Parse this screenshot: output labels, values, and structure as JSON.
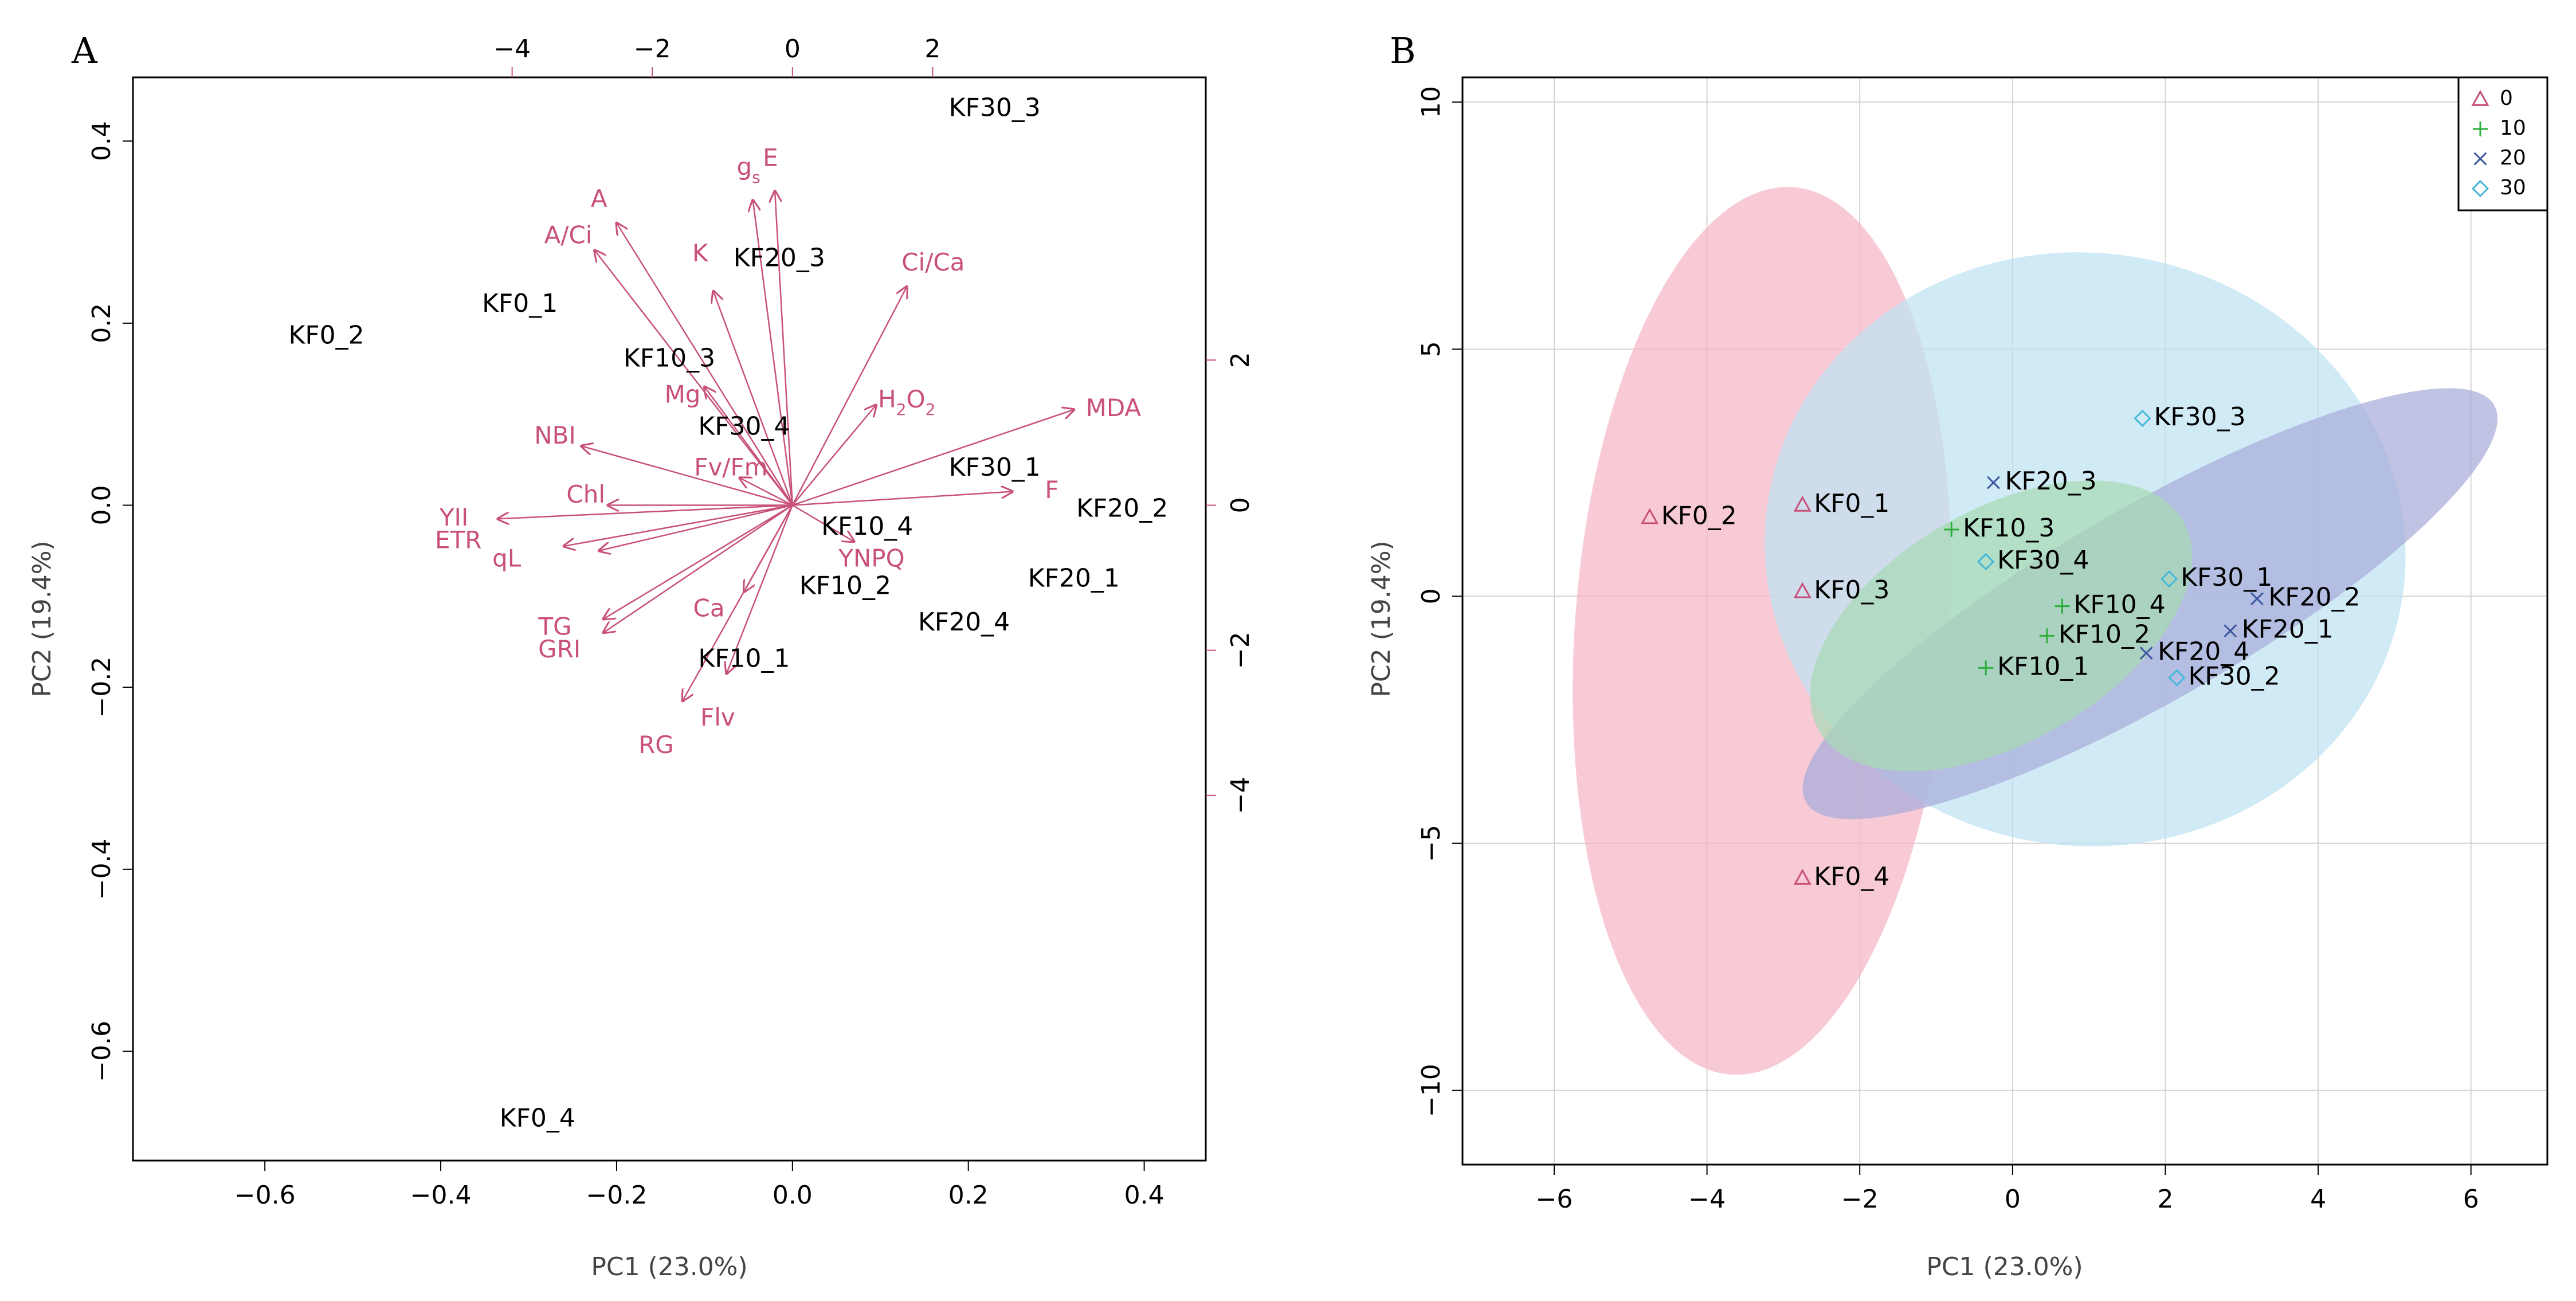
{
  "chart_data": [
    {
      "panel": "A",
      "type": "scatter",
      "subtype": "biplot",
      "xlabel": "PC1 (23.0%)",
      "ylabel": "PC2 (19.4%)",
      "xlim": [
        -0.75,
        0.47
      ],
      "ylim": [
        -0.72,
        0.47
      ],
      "xticks": [
        -0.6,
        -0.4,
        -0.2,
        0.0,
        0.2,
        0.4
      ],
      "yticks": [
        -0.6,
        -0.4,
        -0.2,
        0.0,
        0.2,
        0.4
      ],
      "xtick_labels": [
        "−0.6",
        "−0.4",
        "−0.2",
        "0.0",
        "0.2",
        "0.4"
      ],
      "ytick_labels": [
        "−0.6",
        "−0.4",
        "−0.2",
        "0.0",
        "0.2",
        "0.4"
      ],
      "top_ticks": [
        -4,
        -2,
        0,
        2
      ],
      "top_tick_labels": [
        "−4",
        "−2",
        "0",
        "2"
      ],
      "right_ticks": [
        -4,
        -2,
        0,
        2
      ],
      "right_tick_labels": [
        "−4",
        "−2",
        "0",
        "2"
      ],
      "secondary_scale": 0.0797,
      "observations": [
        {
          "label": "KF0_1",
          "x": -0.31,
          "y": 0.22
        },
        {
          "label": "KF0_2",
          "x": -0.53,
          "y": 0.185
        },
        {
          "label": "KF0_4",
          "x": -0.29,
          "y": -0.675
        },
        {
          "label": "KF10_1",
          "x": -0.055,
          "y": -0.17
        },
        {
          "label": "KF10_2",
          "x": 0.06,
          "y": -0.09
        },
        {
          "label": "KF10_3",
          "x": -0.14,
          "y": 0.16
        },
        {
          "label": "KF10_4",
          "x": 0.085,
          "y": -0.025
        },
        {
          "label": "KF20_1",
          "x": 0.32,
          "y": -0.082
        },
        {
          "label": "KF20_2",
          "x": 0.375,
          "y": -0.005
        },
        {
          "label": "KF20_3",
          "x": -0.015,
          "y": 0.27
        },
        {
          "label": "KF20_4",
          "x": 0.195,
          "y": -0.13
        },
        {
          "label": "KF30_1",
          "x": 0.23,
          "y": 0.04
        },
        {
          "label": "KF30_3",
          "x": 0.23,
          "y": 0.435
        },
        {
          "label": "KF30_4",
          "x": -0.055,
          "y": 0.085
        }
      ],
      "variables": [
        {
          "label": "A",
          "x": -0.2,
          "y": 0.31,
          "lx": -0.22,
          "ly": 0.335
        },
        {
          "label": "A/Ci",
          "x": -0.225,
          "y": 0.28,
          "lx": -0.255,
          "ly": 0.295
        },
        {
          "label": "K",
          "x": -0.09,
          "y": 0.235,
          "lx": -0.105,
          "ly": 0.275
        },
        {
          "label": "E",
          "x": -0.02,
          "y": 0.345,
          "lx": -0.025,
          "ly": 0.38
        },
        {
          "label": "gs",
          "x": -0.045,
          "y": 0.335,
          "lx": -0.05,
          "ly": 0.37,
          "display": "g_s"
        },
        {
          "label": "Ci/Ca",
          "x": 0.13,
          "y": 0.24,
          "lx": 0.16,
          "ly": 0.265
        },
        {
          "label": "H2O2",
          "x": 0.095,
          "y": 0.11,
          "lx": 0.13,
          "ly": 0.115,
          "display": "H_2O_2"
        },
        {
          "label": "MDA",
          "x": 0.32,
          "y": 0.105,
          "lx": 0.365,
          "ly": 0.105
        },
        {
          "label": "F",
          "x": 0.25,
          "y": 0.015,
          "lx": 0.295,
          "ly": 0.015
        },
        {
          "label": "YNPQ",
          "x": 0.07,
          "y": -0.04,
          "lx": 0.09,
          "ly": -0.06
        },
        {
          "label": "Mg",
          "x": -0.1,
          "y": 0.13,
          "lx": -0.125,
          "ly": 0.12
        },
        {
          "label": "NBI",
          "x": -0.24,
          "y": 0.065,
          "lx": -0.27,
          "ly": 0.075
        },
        {
          "label": "Fv/Fm",
          "x": -0.06,
          "y": 0.03,
          "lx": -0.07,
          "ly": 0.04
        },
        {
          "label": "Chl",
          "x": -0.21,
          "y": 0.0,
          "lx": -0.235,
          "ly": 0.01
        },
        {
          "label": "YII",
          "x": -0.335,
          "y": -0.015,
          "lx": -0.385,
          "ly": -0.015
        },
        {
          "label": "ETR",
          "x": -0.26,
          "y": -0.045,
          "lx": -0.38,
          "ly": -0.04
        },
        {
          "label": "qL",
          "x": -0.22,
          "y": -0.05,
          "lx": -0.325,
          "ly": -0.06
        },
        {
          "label": "TG",
          "x": -0.215,
          "y": -0.125,
          "lx": -0.27,
          "ly": -0.135
        },
        {
          "label": "GRI",
          "x": -0.215,
          "y": -0.14,
          "lx": -0.265,
          "ly": -0.16
        },
        {
          "label": "Ca",
          "x": -0.055,
          "y": -0.095,
          "lx": -0.095,
          "ly": -0.115
        },
        {
          "label": "Flv",
          "x": -0.075,
          "y": -0.185,
          "lx": -0.085,
          "ly": -0.235
        },
        {
          "label": "RG",
          "x": -0.125,
          "y": -0.215,
          "lx": -0.155,
          "ly": -0.265
        }
      ]
    },
    {
      "panel": "B",
      "type": "scatter",
      "xlabel": "PC1 (23.0%)",
      "ylabel": "PC2 (19.4%)",
      "xlim": [
        -7.2,
        7.0
      ],
      "ylim": [
        -11.5,
        10.5
      ],
      "xticks": [
        -6,
        -4,
        -2,
        0,
        2,
        4,
        6
      ],
      "yticks": [
        -10,
        -5,
        0,
        5,
        10
      ],
      "xtick_labels": [
        "−6",
        "−4",
        "−2",
        "0",
        "2",
        "4",
        "6"
      ],
      "ytick_labels": [
        "−10",
        "−5",
        "0",
        "5",
        "10"
      ],
      "legend": {
        "position": "top-right",
        "entries": [
          {
            "label": "0",
            "marker": "triangle",
            "color": "#c8507a"
          },
          {
            "label": "10",
            "marker": "plus",
            "color": "#2eae3c"
          },
          {
            "label": "20",
            "marker": "cross",
            "color": "#3c57a0"
          },
          {
            "label": "30",
            "marker": "diamond",
            "color": "#44b8d8"
          }
        ]
      },
      "ellipses": [
        {
          "group": "0",
          "cx": -3.28,
          "cy": -0.7,
          "rx": 2.45,
          "ry": 9.0,
          "angle_deg": 4,
          "color": "#f5b6c6"
        },
        {
          "group": "30",
          "cx": 0.95,
          "cy": 0.95,
          "rx": 4.2,
          "ry": 6.0,
          "angle_deg": 8,
          "color": "#bfe3f2"
        },
        {
          "group": "20",
          "cx": 1.8,
          "cy": -0.15,
          "rx": 5.2,
          "ry": 1.95,
          "angle_deg": -30,
          "color": "#a7acd9"
        },
        {
          "group": "10",
          "cx": -0.15,
          "cy": -0.6,
          "rx": 2.75,
          "ry": 2.35,
          "angle_deg": -30,
          "color": "#a7d9b4"
        }
      ],
      "points": [
        {
          "label": "KF0_1",
          "x": -2.75,
          "y": 1.85,
          "group": "0"
        },
        {
          "label": "KF0_2",
          "x": -4.75,
          "y": 1.6,
          "group": "0"
        },
        {
          "label": "KF0_3",
          "x": -2.75,
          "y": 0.1,
          "group": "0"
        },
        {
          "label": "KF0_4",
          "x": -2.75,
          "y": -5.7,
          "group": "0"
        },
        {
          "label": "KF10_1",
          "x": -0.35,
          "y": -1.45,
          "group": "10"
        },
        {
          "label": "KF10_2",
          "x": 0.45,
          "y": -0.8,
          "group": "10"
        },
        {
          "label": "KF10_3",
          "x": -0.8,
          "y": 1.35,
          "group": "10"
        },
        {
          "label": "KF10_4",
          "x": 0.65,
          "y": -0.2,
          "group": "10"
        },
        {
          "label": "KF20_1",
          "x": 2.85,
          "y": -0.7,
          "group": "20"
        },
        {
          "label": "KF20_2",
          "x": 3.2,
          "y": -0.05,
          "group": "20"
        },
        {
          "label": "KF20_3",
          "x": -0.25,
          "y": 2.3,
          "group": "20"
        },
        {
          "label": "KF20_4",
          "x": 1.75,
          "y": -1.15,
          "group": "20"
        },
        {
          "label": "KF30_1",
          "x": 2.05,
          "y": 0.35,
          "group": "30"
        },
        {
          "label": "KF30_2",
          "x": 2.15,
          "y": -1.65,
          "group": "30"
        },
        {
          "label": "KF30_3",
          "x": 1.7,
          "y": 3.6,
          "group": "30"
        },
        {
          "label": "KF30_4",
          "x": -0.35,
          "y": 0.7,
          "group": "30"
        }
      ]
    }
  ]
}
